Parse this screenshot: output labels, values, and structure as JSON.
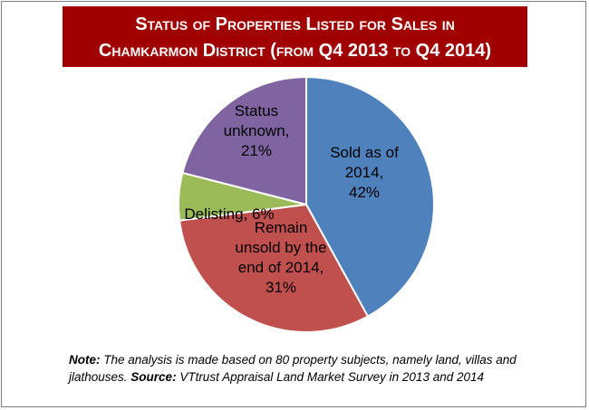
{
  "chart_data": {
    "type": "pie",
    "title_lines": [
      "Status of Properties Listed for Sales in",
      "Chamkarmon District (from Q4 2013 to Q4 2014)"
    ],
    "slices": [
      {
        "label_lines": [
          "Sold as of",
          "2014,",
          "42%"
        ],
        "value": 42,
        "color": "#4f81bd"
      },
      {
        "label_lines": [
          "Remain",
          "unsold by the",
          "end of 2014,",
          "31%"
        ],
        "value": 31,
        "color": "#c0504d"
      },
      {
        "label_lines": [
          "Delisting, 6%"
        ],
        "value": 6,
        "color": "#9bbb59"
      },
      {
        "label_lines": [
          "Status",
          "unknown,",
          "21%"
        ],
        "value": 21,
        "color": "#8064a2"
      }
    ]
  },
  "note": {
    "note_label": "Note:",
    "note_text": " The analysis is made based on 80 property subjects, namely land, villas and jlathouses. ",
    "source_label": "Source:",
    "source_text": " VTtrust Appraisal Land Market Survey in 2013 and 2014"
  }
}
